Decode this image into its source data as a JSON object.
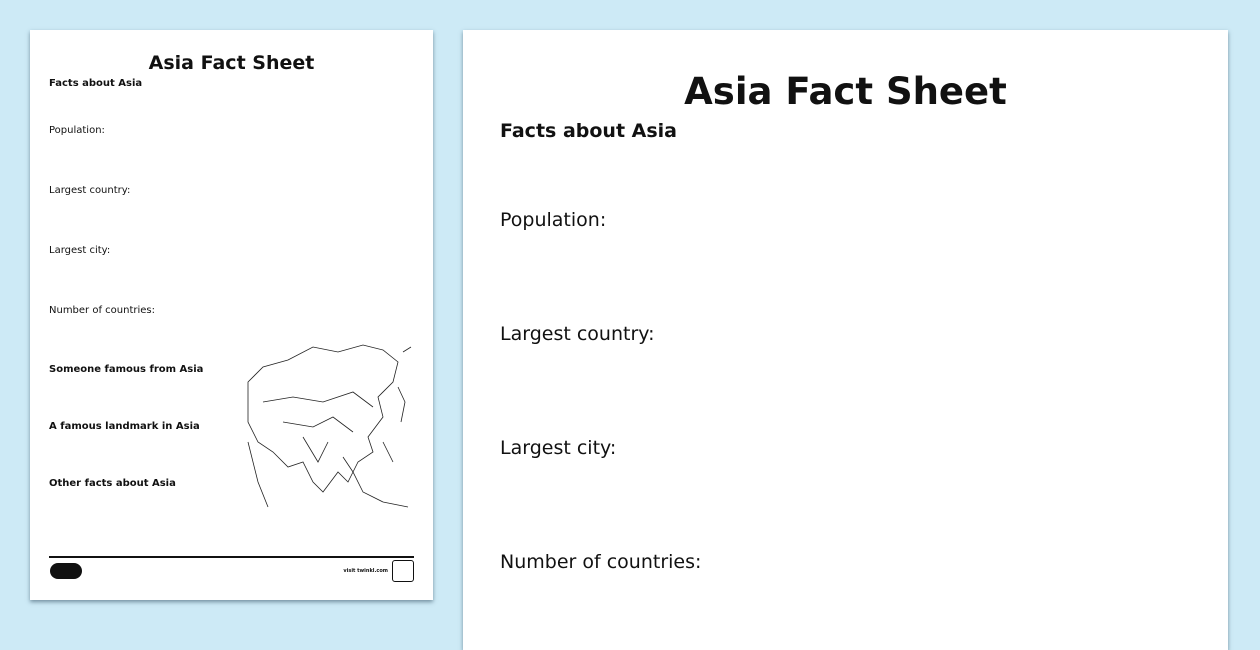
{
  "thumbnail": {
    "title": "Asia Fact Sheet",
    "subtitle": "Facts about Asia",
    "fields": [
      "Population:",
      "Largest country:",
      "Largest city:",
      "Number of countries:"
    ],
    "prompts": [
      "Someone famous from Asia",
      "A famous landmark in Asia",
      "Other facts about Asia"
    ],
    "footer": {
      "logo": "twinkl",
      "visit_text": "visit twinkl.com",
      "badge": "twinkl"
    }
  },
  "main": {
    "title": "Asia Fact Sheet",
    "subtitle": "Facts about Asia",
    "fields": [
      "Population:",
      "Largest country:",
      "Largest city:",
      "Number of countries:"
    ]
  },
  "colors": {
    "background": "#cdeaf6",
    "page": "#ffffff"
  }
}
